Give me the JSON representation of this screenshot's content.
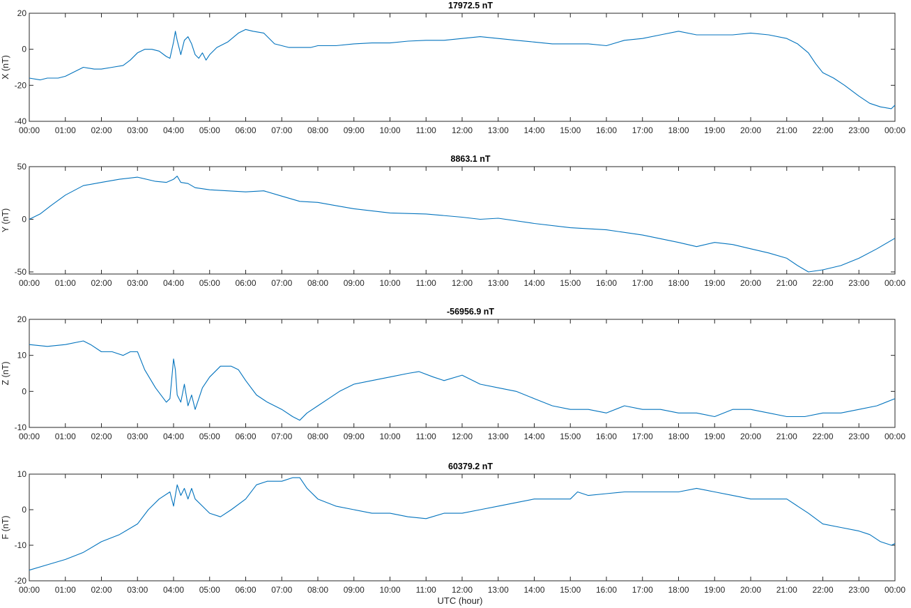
{
  "colors": {
    "line": "#0072bd",
    "axes": "#262626",
    "background": "#ffffff"
  },
  "xlabel": "UTC (hour)",
  "chart_data": [
    {
      "type": "line",
      "title": "17972.5 nT",
      "ylabel": "X (nT)",
      "xlim": [
        0,
        24
      ],
      "ylim": [
        -40,
        20
      ],
      "yticks": [
        "20",
        "0",
        "-20",
        "-40"
      ],
      "xticks": [
        "00:00",
        "01:00",
        "02:00",
        "03:00",
        "04:00",
        "05:00",
        "06:00",
        "07:00",
        "08:00",
        "09:00",
        "10:00",
        "11:00",
        "12:00",
        "13:00",
        "14:00",
        "15:00",
        "16:00",
        "17:00",
        "18:00",
        "19:00",
        "20:00",
        "21:00",
        "22:00",
        "23:00",
        "00:00"
      ],
      "series": [
        {
          "x": [
            0,
            0.3,
            0.5,
            0.8,
            1.0,
            1.2,
            1.5,
            1.8,
            2.0,
            2.3,
            2.6,
            2.8,
            3.0,
            3.2,
            3.4,
            3.6,
            3.8,
            3.9,
            4.0,
            4.05,
            4.1,
            4.2,
            4.3,
            4.4,
            4.5,
            4.6,
            4.7,
            4.8,
            4.9,
            5.0,
            5.2,
            5.5,
            5.8,
            6.0,
            6.2,
            6.5,
            6.8,
            7.0,
            7.2,
            7.5,
            7.8,
            8.0,
            8.5,
            9.0,
            9.5,
            10.0,
            10.5,
            11.0,
            11.5,
            12.0,
            12.5,
            13.0,
            13.5,
            14.0,
            14.5,
            15.0,
            15.5,
            16.0,
            16.5,
            17.0,
            17.5,
            18.0,
            18.5,
            19.0,
            19.5,
            20.0,
            20.5,
            21.0,
            21.3,
            21.6,
            21.8,
            22.0,
            22.3,
            22.6,
            23.0,
            23.3,
            23.6,
            23.9,
            24.0
          ],
          "y": [
            -16,
            -17,
            -16,
            -16,
            -15,
            -13,
            -10,
            -11,
            -11,
            -10,
            -9,
            -6,
            -2,
            0,
            0,
            -1,
            -4,
            -5,
            4,
            10,
            5,
            -3,
            5,
            7,
            3,
            -3,
            -5,
            -2,
            -6,
            -3,
            1,
            4,
            9,
            11,
            10,
            9,
            3,
            2,
            1,
            1,
            1,
            2,
            2,
            3,
            3.5,
            3.5,
            4.5,
            5,
            5,
            6,
            7,
            6,
            5,
            4,
            3,
            3,
            3,
            2,
            5,
            6,
            8,
            10,
            8,
            8,
            8,
            9,
            8,
            6,
            3,
            -2,
            -8,
            -13,
            -16,
            -20,
            -26,
            -30,
            -32,
            -33,
            -31
          ]
        }
      ]
    },
    {
      "type": "line",
      "title": "8863.1 nT",
      "ylabel": "Y (nT)",
      "xlim": [
        0,
        24
      ],
      "ylim": [
        -52,
        50
      ],
      "yticks": [
        "50",
        "0",
        "-50"
      ],
      "xticks": [
        "00:00",
        "01:00",
        "02:00",
        "03:00",
        "04:00",
        "05:00",
        "06:00",
        "07:00",
        "08:00",
        "09:00",
        "10:00",
        "11:00",
        "12:00",
        "13:00",
        "14:00",
        "15:00",
        "16:00",
        "17:00",
        "18:00",
        "19:00",
        "20:00",
        "21:00",
        "22:00",
        "23:00",
        "00:00"
      ],
      "series": [
        {
          "x": [
            0,
            0.3,
            0.6,
            1.0,
            1.5,
            2.0,
            2.5,
            3.0,
            3.5,
            3.8,
            4.0,
            4.1,
            4.2,
            4.4,
            4.6,
            5.0,
            5.5,
            6.0,
            6.5,
            7.0,
            7.5,
            8.0,
            8.5,
            9.0,
            10.0,
            11.0,
            12.0,
            12.5,
            13.0,
            14.0,
            15.0,
            16.0,
            17.0,
            18.0,
            18.5,
            19.0,
            19.5,
            20.0,
            20.5,
            21.0,
            21.3,
            21.6,
            22.0,
            22.5,
            23.0,
            23.5,
            24.0
          ],
          "y": [
            0,
            5,
            13,
            23,
            32,
            35,
            38,
            40,
            36,
            35,
            38,
            41,
            35,
            34,
            30,
            28,
            27,
            26,
            27,
            22,
            17,
            16,
            13,
            10,
            6,
            5,
            2,
            0,
            1,
            -4,
            -8,
            -10,
            -15,
            -22,
            -26,
            -22,
            -24,
            -28,
            -32,
            -37,
            -44,
            -50,
            -48,
            -44,
            -37,
            -28,
            -18
          ]
        }
      ]
    },
    {
      "type": "line",
      "title": "-56956.9 nT",
      "ylabel": "Z (nT)",
      "xlim": [
        0,
        24
      ],
      "ylim": [
        -10,
        20
      ],
      "yticks": [
        "20",
        "10",
        "0",
        "-10"
      ],
      "xticks": [
        "00:00",
        "01:00",
        "02:00",
        "03:00",
        "04:00",
        "05:00",
        "06:00",
        "07:00",
        "08:00",
        "09:00",
        "10:00",
        "11:00",
        "12:00",
        "13:00",
        "14:00",
        "15:00",
        "16:00",
        "17:00",
        "18:00",
        "19:00",
        "20:00",
        "21:00",
        "22:00",
        "23:00",
        "00:00"
      ],
      "series": [
        {
          "x": [
            0,
            0.5,
            1.0,
            1.5,
            1.7,
            2.0,
            2.3,
            2.6,
            2.8,
            3.0,
            3.2,
            3.5,
            3.8,
            3.9,
            4.0,
            4.05,
            4.1,
            4.2,
            4.3,
            4.4,
            4.5,
            4.6,
            4.8,
            5.0,
            5.3,
            5.6,
            5.8,
            6.0,
            6.3,
            6.6,
            7.0,
            7.3,
            7.5,
            7.7,
            8.0,
            8.3,
            8.6,
            9.0,
            9.5,
            10.0,
            10.5,
            10.8,
            11.2,
            11.5,
            12.0,
            12.5,
            13.0,
            13.5,
            14.0,
            14.5,
            15.0,
            15.5,
            16.0,
            16.5,
            17.0,
            17.5,
            18.0,
            18.5,
            19.0,
            19.5,
            20.0,
            20.5,
            21.0,
            21.5,
            22.0,
            22.5,
            23.0,
            23.5,
            24.0
          ],
          "y": [
            13,
            12.5,
            13,
            14,
            13,
            11,
            11,
            10,
            11,
            11,
            6,
            1,
            -3,
            -2,
            9,
            6,
            -1,
            -3,
            2,
            -4,
            -1,
            -5,
            1,
            4,
            7,
            7,
            6,
            3,
            -1,
            -3,
            -5,
            -7,
            -8,
            -6,
            -4,
            -2,
            0,
            2,
            3,
            4,
            5,
            5.5,
            4,
            3,
            4.5,
            2,
            1,
            0,
            -2,
            -4,
            -5,
            -5,
            -6,
            -4,
            -5,
            -5,
            -6,
            -6,
            -7,
            -5,
            -5,
            -6,
            -7,
            -7,
            -6,
            -6,
            -5,
            -4,
            -2
          ]
        }
      ]
    },
    {
      "type": "line",
      "title": "60379.2 nT",
      "ylabel": "F (nT)",
      "xlim": [
        0,
        24
      ],
      "ylim": [
        -20,
        10
      ],
      "yticks": [
        "10",
        "0",
        "-10",
        "-20"
      ],
      "xticks": [
        "00:00",
        "01:00",
        "02:00",
        "03:00",
        "04:00",
        "05:00",
        "06:00",
        "07:00",
        "08:00",
        "09:00",
        "10:00",
        "11:00",
        "12:00",
        "13:00",
        "14:00",
        "15:00",
        "16:00",
        "17:00",
        "18:00",
        "19:00",
        "20:00",
        "21:00",
        "22:00",
        "23:00",
        "00:00"
      ],
      "series": [
        {
          "x": [
            0,
            0.5,
            1.0,
            1.5,
            2.0,
            2.5,
            3.0,
            3.3,
            3.6,
            3.9,
            4.0,
            4.1,
            4.2,
            4.3,
            4.4,
            4.5,
            4.6,
            4.8,
            5.0,
            5.3,
            5.6,
            6.0,
            6.3,
            6.6,
            7.0,
            7.3,
            7.5,
            7.7,
            8.0,
            8.5,
            9.0,
            9.5,
            10.0,
            10.5,
            11.0,
            11.5,
            12.0,
            12.5,
            13.0,
            13.5,
            14.0,
            14.5,
            15.0,
            15.2,
            15.5,
            16.0,
            16.5,
            17.0,
            17.5,
            18.0,
            18.5,
            19.0,
            19.5,
            20.0,
            20.5,
            21.0,
            21.3,
            21.6,
            22.0,
            22.5,
            23.0,
            23.3,
            23.6,
            23.9,
            24.0
          ],
          "y": [
            -17,
            -15.5,
            -14,
            -12,
            -9,
            -7,
            -4,
            0,
            3,
            5,
            1,
            7,
            4,
            6,
            3,
            6,
            3,
            1,
            -1,
            -2,
            0,
            3,
            7,
            8,
            8,
            9,
            9,
            6,
            3,
            1,
            0,
            -1,
            -1,
            -2,
            -2.5,
            -1,
            -1,
            0,
            1,
            2,
            3,
            3,
            3,
            5,
            4,
            4.5,
            5,
            5,
            5,
            5,
            6,
            5,
            4,
            3,
            3,
            3,
            1,
            -1,
            -4,
            -5,
            -6,
            -7,
            -9,
            -10,
            -9.5
          ]
        }
      ]
    }
  ]
}
